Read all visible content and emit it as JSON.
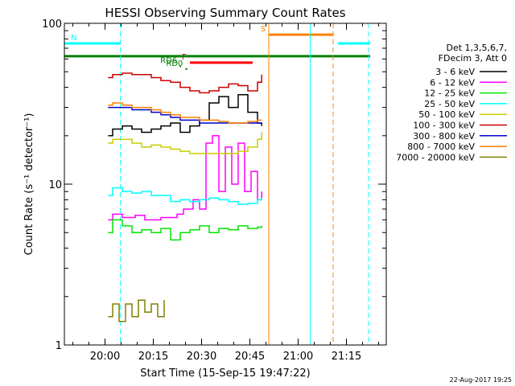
{
  "chart_data": {
    "type": "line",
    "title": "HESSI Observing Summary Count Rates",
    "xlabel": "Start Time (15-Sep-15 19:47:22)",
    "ylabel": "Count Rate (s⁻¹ detector⁻¹)",
    "x_axis": {
      "unit": "minutes after 19:47:22",
      "range": [
        0,
        100
      ],
      "ticks": [
        {
          "x": 12.63,
          "label": "20:00"
        },
        {
          "x": 27.63,
          "label": "20:15"
        },
        {
          "x": 42.63,
          "label": "20:30"
        },
        {
          "x": 57.63,
          "label": "20:45"
        },
        {
          "x": 72.63,
          "label": "21:00"
        },
        {
          "x": 87.63,
          "label": "21:15"
        }
      ]
    },
    "y_axis": {
      "scale": "log",
      "range": [
        1,
        100
      ],
      "major_ticks": [
        {
          "y": 1,
          "label": "1"
        },
        {
          "y": 10,
          "label": "10"
        },
        {
          "y": 100,
          "label": "100"
        }
      ]
    },
    "legend": {
      "placement": "right",
      "header": [
        "Det 1,3,5,6,7,",
        "FDecim 3, Att 0"
      ],
      "entries": [
        {
          "label": "3 - 6 keV",
          "color": "#000000"
        },
        {
          "label": "6 - 12 keV",
          "color": "#ff00ff"
        },
        {
          "label": "12 - 25 keV",
          "color": "#00e600"
        },
        {
          "label": "25 - 50 keV",
          "color": "#00ffff"
        },
        {
          "label": "50 - 100 keV",
          "color": "#cccc00"
        },
        {
          "label": "100 - 300 keV",
          "color": "#cc0000"
        },
        {
          "label": "300 - 800 keV",
          "color": "#0000cc"
        },
        {
          "label": "800 - 7000 keV",
          "color": "#ff8000"
        },
        {
          "label": "7000 - 20000 keV",
          "color": "#808000"
        }
      ]
    },
    "series": [
      {
        "name": "3 - 6 keV",
        "color": "#000000",
        "points": [
          [
            13.6,
            20
          ],
          [
            15,
            22
          ],
          [
            18,
            23
          ],
          [
            21,
            22
          ],
          [
            24,
            21
          ],
          [
            27,
            22
          ],
          [
            30,
            23
          ],
          [
            33,
            24
          ],
          [
            36,
            21
          ],
          [
            39,
            23
          ],
          [
            42,
            25
          ],
          [
            45,
            32
          ],
          [
            48,
            35
          ],
          [
            51,
            30
          ],
          [
            54,
            36
          ],
          [
            57,
            28
          ],
          [
            60,
            24
          ],
          [
            61.3,
            23
          ]
        ]
      },
      {
        "name": "6 - 12 keV",
        "color": "#ff00ff",
        "points": [
          [
            13.6,
            6
          ],
          [
            15,
            6.5
          ],
          [
            18,
            6.2
          ],
          [
            22,
            6.4
          ],
          [
            25,
            6
          ],
          [
            30,
            6.2
          ],
          [
            35,
            6.5
          ],
          [
            37,
            7
          ],
          [
            40,
            8
          ],
          [
            42,
            7
          ],
          [
            44,
            18
          ],
          [
            46,
            20
          ],
          [
            48,
            9
          ],
          [
            50,
            17
          ],
          [
            52,
            10
          ],
          [
            54,
            18
          ],
          [
            56,
            9
          ],
          [
            58,
            12
          ],
          [
            60,
            8
          ],
          [
            61.3,
            9
          ]
        ]
      },
      {
        "name": "12 - 25 keV",
        "color": "#00e600",
        "points": [
          [
            13.6,
            5
          ],
          [
            15,
            6
          ],
          [
            18,
            5.5
          ],
          [
            21,
            5
          ],
          [
            24,
            5.2
          ],
          [
            27,
            5
          ],
          [
            30,
            5.3
          ],
          [
            33,
            4.5
          ],
          [
            36,
            5
          ],
          [
            39,
            5.2
          ],
          [
            42,
            5.5
          ],
          [
            45,
            5
          ],
          [
            48,
            5.3
          ],
          [
            51,
            5.2
          ],
          [
            54,
            5.5
          ],
          [
            57,
            5.3
          ],
          [
            60,
            5.4
          ],
          [
            61.3,
            5.5
          ]
        ]
      },
      {
        "name": "25 - 50 keV",
        "color": "#00ffff",
        "points": [
          [
            13.6,
            8.5
          ],
          [
            15,
            9.5
          ],
          [
            18,
            9
          ],
          [
            21,
            8.8
          ],
          [
            24,
            9
          ],
          [
            27,
            8.5
          ],
          [
            30,
            8.5
          ],
          [
            33,
            7.8
          ],
          [
            36,
            8
          ],
          [
            39,
            7.8
          ],
          [
            42,
            8
          ],
          [
            45,
            8.2
          ],
          [
            48,
            8
          ],
          [
            51,
            7.8
          ],
          [
            54,
            7.5
          ],
          [
            57,
            7.6
          ],
          [
            60,
            8
          ],
          [
            61.3,
            8.2
          ]
        ]
      },
      {
        "name": "50 - 100 keV",
        "color": "#cccc00",
        "points": [
          [
            13.6,
            18
          ],
          [
            15,
            19
          ],
          [
            18,
            19
          ],
          [
            21,
            18
          ],
          [
            24,
            17
          ],
          [
            27,
            17.5
          ],
          [
            30,
            17
          ],
          [
            33,
            16.5
          ],
          [
            36,
            16
          ],
          [
            39,
            15.5
          ],
          [
            42,
            15.5
          ],
          [
            45,
            15.5
          ],
          [
            48,
            15.5
          ],
          [
            51,
            15.5
          ],
          [
            54,
            16
          ],
          [
            57,
            17
          ],
          [
            60,
            19
          ],
          [
            61.3,
            21
          ]
        ]
      },
      {
        "name": "100 - 300 keV",
        "color": "#cc0000",
        "points": [
          [
            13.6,
            46
          ],
          [
            15,
            48
          ],
          [
            18,
            49
          ],
          [
            21,
            48
          ],
          [
            24,
            48
          ],
          [
            27,
            46
          ],
          [
            30,
            44
          ],
          [
            33,
            43
          ],
          [
            36,
            40
          ],
          [
            39,
            38
          ],
          [
            42,
            37
          ],
          [
            45,
            38
          ],
          [
            48,
            40
          ],
          [
            51,
            42
          ],
          [
            54,
            41
          ],
          [
            57,
            38
          ],
          [
            60,
            43
          ],
          [
            61.3,
            48
          ]
        ]
      },
      {
        "name": "300 - 800 keV",
        "color": "#0000cc",
        "points": [
          [
            13.6,
            30
          ],
          [
            15,
            30
          ],
          [
            18,
            30
          ],
          [
            21,
            29
          ],
          [
            24,
            29
          ],
          [
            27,
            28
          ],
          [
            30,
            27
          ],
          [
            33,
            26
          ],
          [
            36,
            25
          ],
          [
            39,
            25
          ],
          [
            42,
            24
          ],
          [
            45,
            24
          ],
          [
            48,
            24
          ],
          [
            51,
            24
          ],
          [
            54,
            24
          ],
          [
            57,
            24
          ],
          [
            60,
            24
          ],
          [
            61.3,
            24
          ]
        ]
      },
      {
        "name": "800 - 7000 keV",
        "color": "#ff8000",
        "points": [
          [
            13.6,
            31
          ],
          [
            15,
            32
          ],
          [
            18,
            31
          ],
          [
            21,
            30
          ],
          [
            24,
            30
          ],
          [
            27,
            29
          ],
          [
            30,
            28
          ],
          [
            33,
            27
          ],
          [
            36,
            26
          ],
          [
            39,
            26
          ],
          [
            42,
            25
          ],
          [
            45,
            25
          ],
          [
            48,
            24.5
          ],
          [
            51,
            24
          ],
          [
            54,
            24
          ],
          [
            57,
            24.5
          ],
          [
            60,
            25
          ],
          [
            61.3,
            25
          ]
        ]
      },
      {
        "name": "7000 - 20000 keV",
        "color": "#808000",
        "points": [
          [
            13.6,
            1.5
          ],
          [
            15,
            1.8
          ],
          [
            17,
            1.4
          ],
          [
            19,
            1.8
          ],
          [
            21,
            1.5
          ],
          [
            23,
            1.9
          ],
          [
            25,
            1.6
          ],
          [
            27,
            1.8
          ],
          [
            29,
            1.5
          ],
          [
            31,
            1.9
          ]
        ]
      }
    ],
    "flag_bars": [
      {
        "label": "N",
        "color": "#00ffff",
        "y": 75,
        "segments": [
          [
            0,
            17.4
          ],
          [
            85,
            95
          ]
        ]
      },
      {
        "label": "S",
        "color": "#ff8000",
        "y": 85,
        "segments": [
          [
            63.5,
            83.5
          ]
        ]
      },
      {
        "label": "F",
        "color": "#ff0000",
        "y": 57,
        "segments": [
          [
            39,
            58.5
          ]
        ]
      },
      {
        "label": "",
        "color": "#008000",
        "y": 62.5,
        "segments": [
          [
            0,
            95
          ]
        ]
      },
      {
        "label": "RD0",
        "color": "#008000",
        "y": 52,
        "segments": [
          [
            37.6,
            38.2
          ]
        ]
      },
      {
        "label": "RD6",
        "color": "#008000",
        "y": 54,
        "segments": [
          [
            35.8,
            36.2
          ]
        ]
      }
    ],
    "vertical_markers": [
      {
        "x": 17.4,
        "color": "#00ffff",
        "style": "dashed"
      },
      {
        "x": 63.5,
        "color": "#ff8000",
        "style": "solid"
      },
      {
        "x": 76.4,
        "color": "#00ffff",
        "style": "solid"
      },
      {
        "x": 83.5,
        "color": "#ff8000",
        "style": "dashed"
      },
      {
        "x": 94.5,
        "color": "#00ffff",
        "style": "dashed"
      }
    ],
    "footer_date": "22-Aug-2017 19:25"
  }
}
